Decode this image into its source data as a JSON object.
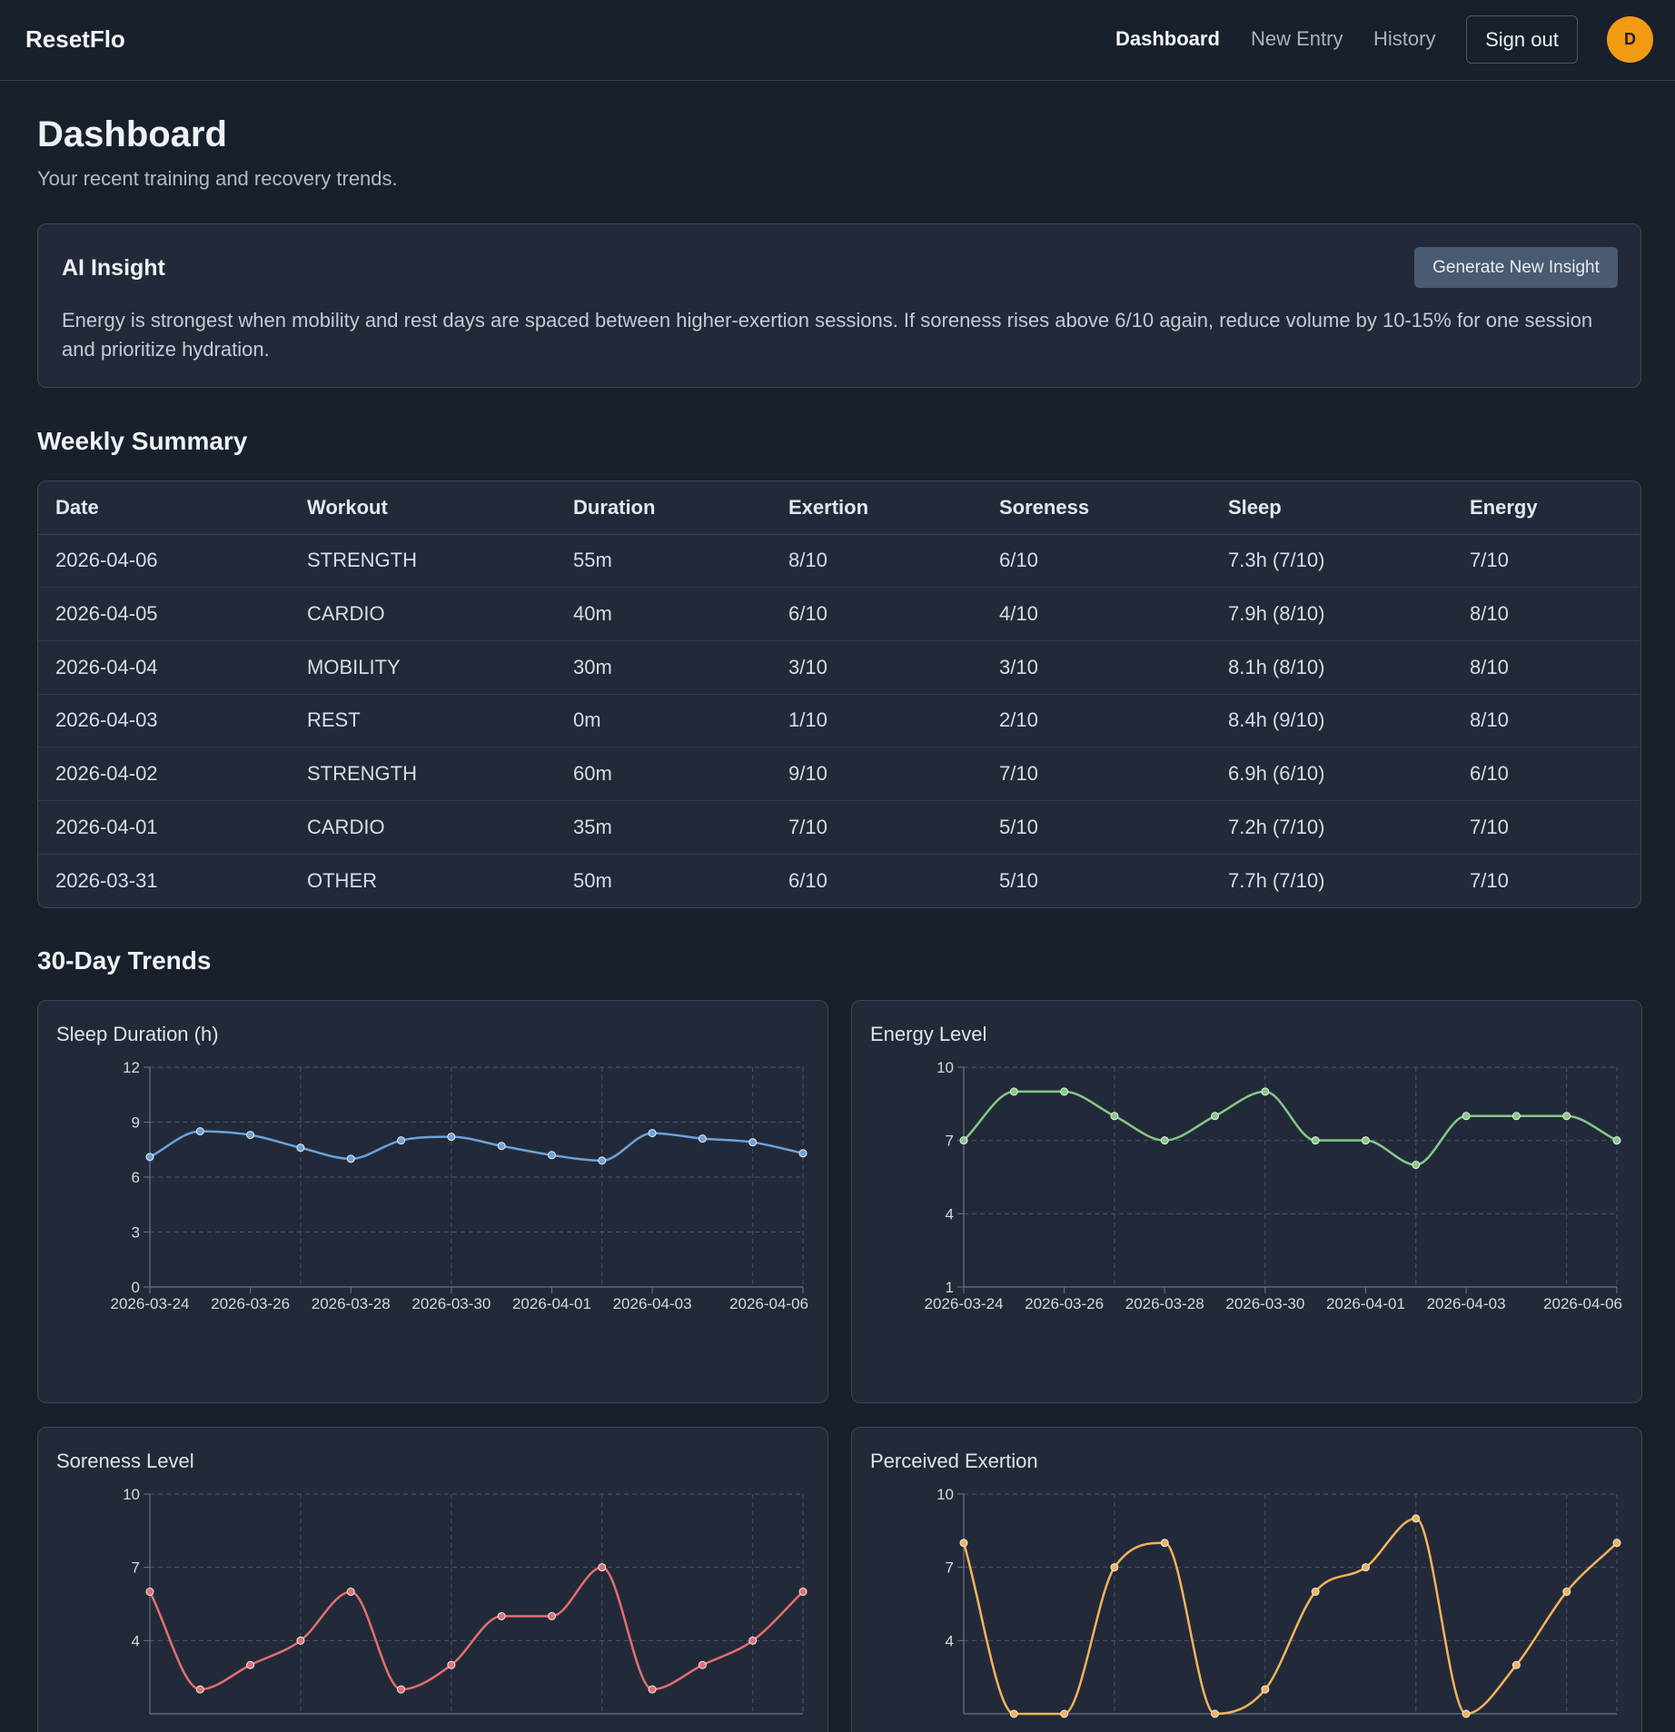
{
  "app": {
    "brand": "ResetFlo",
    "nav": [
      "Dashboard",
      "New Entry",
      "History"
    ],
    "sign_out": "Sign out",
    "avatar_initial": "D",
    "accent": "#f29a12"
  },
  "header": {
    "title": "Dashboard",
    "subtitle": "Your recent training and recovery trends."
  },
  "insight": {
    "title": "AI Insight",
    "button": "Generate New Insight",
    "text": "Energy is strongest when mobility and rest days are spaced between higher-exertion sessions. If soreness rises above 6/10 again, reduce volume by 10-15% for one session and prioritize hydration."
  },
  "weekly": {
    "title": "Weekly Summary",
    "headers": [
      "Date",
      "Workout",
      "Duration",
      "Exertion",
      "Soreness",
      "Sleep",
      "Energy"
    ],
    "rows": [
      [
        "2026-04-06",
        "STRENGTH",
        "55m",
        "8/10",
        "6/10",
        "7.3h (7/10)",
        "7/10"
      ],
      [
        "2026-04-05",
        "CARDIO",
        "40m",
        "6/10",
        "4/10",
        "7.9h (8/10)",
        "8/10"
      ],
      [
        "2026-04-04",
        "MOBILITY",
        "30m",
        "3/10",
        "3/10",
        "8.1h (8/10)",
        "8/10"
      ],
      [
        "2026-04-03",
        "REST",
        "0m",
        "1/10",
        "2/10",
        "8.4h (9/10)",
        "8/10"
      ],
      [
        "2026-04-02",
        "STRENGTH",
        "60m",
        "9/10",
        "7/10",
        "6.9h (6/10)",
        "6/10"
      ],
      [
        "2026-04-01",
        "CARDIO",
        "35m",
        "7/10",
        "5/10",
        "7.2h (7/10)",
        "7/10"
      ],
      [
        "2026-03-31",
        "OTHER",
        "50m",
        "6/10",
        "5/10",
        "7.7h (7/10)",
        "7/10"
      ]
    ]
  },
  "trends": {
    "title": "30-Day Trends"
  },
  "chart_data": [
    {
      "type": "line",
      "title": "Sleep Duration (h)",
      "x": [
        "2026-03-24",
        "2026-03-25",
        "2026-03-26",
        "2026-03-27",
        "2026-03-28",
        "2026-03-29",
        "2026-03-30",
        "2026-03-31",
        "2026-04-01",
        "2026-04-02",
        "2026-04-03",
        "2026-04-04",
        "2026-04-05",
        "2026-04-06"
      ],
      "values": [
        7.1,
        8.5,
        8.3,
        7.6,
        7.0,
        8.0,
        8.2,
        7.7,
        7.2,
        6.9,
        8.4,
        8.1,
        7.9,
        7.3
      ],
      "ylim": [
        0,
        12
      ],
      "yticks": [
        0,
        3,
        6,
        9,
        12
      ],
      "xticks": [
        "2026-03-24",
        "2026-03-26",
        "2026-03-28",
        "2026-03-30",
        "2026-04-01",
        "2026-04-03",
        "2026-04-06"
      ],
      "color": "#6ea1d8",
      "grid": true
    },
    {
      "type": "line",
      "title": "Energy Level",
      "x": [
        "2026-03-24",
        "2026-03-25",
        "2026-03-26",
        "2026-03-27",
        "2026-03-28",
        "2026-03-29",
        "2026-03-30",
        "2026-03-31",
        "2026-04-01",
        "2026-04-02",
        "2026-04-03",
        "2026-04-04",
        "2026-04-05",
        "2026-04-06"
      ],
      "values": [
        7,
        9,
        9,
        8,
        7,
        8,
        9,
        7,
        7,
        6,
        8,
        8,
        8,
        7
      ],
      "ylim": [
        1,
        10
      ],
      "yticks": [
        1,
        4,
        7,
        10
      ],
      "xticks": [
        "2026-03-24",
        "2026-03-26",
        "2026-03-28",
        "2026-03-30",
        "2026-04-01",
        "2026-04-03",
        "2026-04-06"
      ],
      "color": "#86c983",
      "grid": true
    },
    {
      "type": "line",
      "title": "Soreness Level",
      "x": [
        "2026-03-24",
        "2026-03-25",
        "2026-03-26",
        "2026-03-27",
        "2026-03-28",
        "2026-03-29",
        "2026-03-30",
        "2026-03-31",
        "2026-04-01",
        "2026-04-02",
        "2026-04-03",
        "2026-04-04",
        "2026-04-05",
        "2026-04-06"
      ],
      "values": [
        6,
        2,
        3,
        4,
        6,
        2,
        3,
        5,
        5,
        7,
        2,
        3,
        4,
        6
      ],
      "ylim": [
        1,
        10
      ],
      "yticks": [
        4,
        7,
        10
      ],
      "xticks": [],
      "color": "#e36f6f",
      "grid": true
    },
    {
      "type": "line",
      "title": "Perceived Exertion",
      "x": [
        "2026-03-24",
        "2026-03-25",
        "2026-03-26",
        "2026-03-27",
        "2026-03-28",
        "2026-03-29",
        "2026-03-30",
        "2026-03-31",
        "2026-04-01",
        "2026-04-02",
        "2026-04-03",
        "2026-04-04",
        "2026-04-05",
        "2026-04-06"
      ],
      "values": [
        8,
        1,
        1,
        7,
        8,
        1,
        2,
        6,
        7,
        9,
        1,
        3,
        6,
        8
      ],
      "ylim": [
        1,
        10
      ],
      "yticks": [
        4,
        7,
        10
      ],
      "xticks": [],
      "color": "#f3b35a",
      "grid": true
    }
  ]
}
